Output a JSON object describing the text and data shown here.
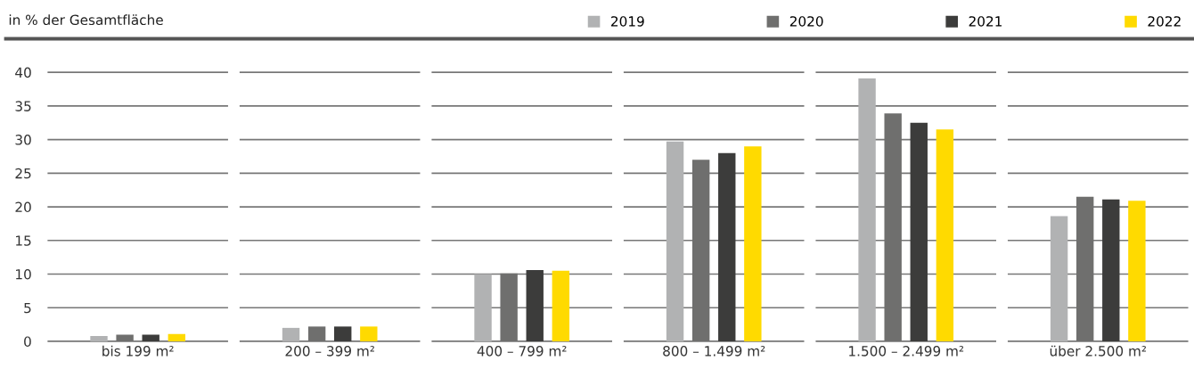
{
  "chart_data": {
    "type": "bar",
    "ylabel": "in % der Gesamtfläche",
    "categories": [
      "bis 199 m²",
      "200 – 399 m²",
      "400 – 799 m²",
      "800 – 1.499 m²",
      "1.500 – 2.499 m²",
      "über 2.500 m²"
    ],
    "series": [
      {
        "name": "2019",
        "color": "#b1b2b3",
        "values": [
          0.8,
          2.0,
          10.0,
          29.7,
          39.1,
          18.6
        ]
      },
      {
        "name": "2020",
        "color": "#6f6f6e",
        "values": [
          1.0,
          2.2,
          10.1,
          27.0,
          33.9,
          21.5
        ]
      },
      {
        "name": "2021",
        "color": "#3c3c3b",
        "values": [
          1.0,
          2.2,
          10.6,
          28.0,
          32.5,
          21.1
        ]
      },
      {
        "name": "2022",
        "color": "#ffda00",
        "values": [
          1.1,
          2.2,
          10.5,
          29.0,
          31.5,
          20.9
        ]
      }
    ],
    "ylim": [
      0,
      40
    ],
    "yticks": [
      0,
      5,
      10,
      15,
      20,
      25,
      30,
      35,
      40
    ],
    "grid": "y",
    "legend": "top right"
  }
}
